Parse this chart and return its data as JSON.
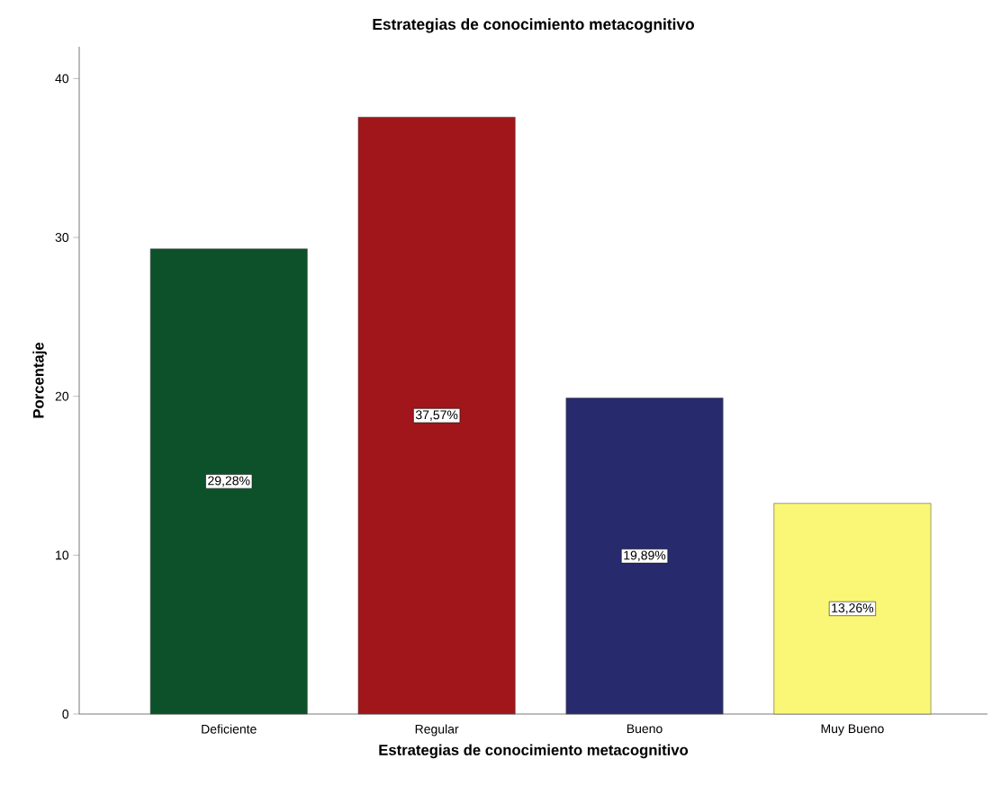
{
  "chart_data": {
    "type": "bar",
    "title": "Estrategias de conocimiento metacognitivo",
    "xlabel": "Estrategias de conocimiento metacognitivo",
    "ylabel": "Porcentaje",
    "categories": [
      "Deficiente",
      "Regular",
      "Bueno",
      "Muy Bueno"
    ],
    "values": [
      29.28,
      37.57,
      19.89,
      13.26
    ],
    "colors": [
      "#0c512a",
      "#a0161a",
      "#282a6e",
      "#f9f775"
    ],
    "value_labels": [
      "29,28%",
      "37,57%",
      "19,89%",
      "13,26%"
    ],
    "ylim": [
      0,
      42
    ],
    "yticks": [
      0,
      10,
      20,
      30,
      40
    ]
  }
}
